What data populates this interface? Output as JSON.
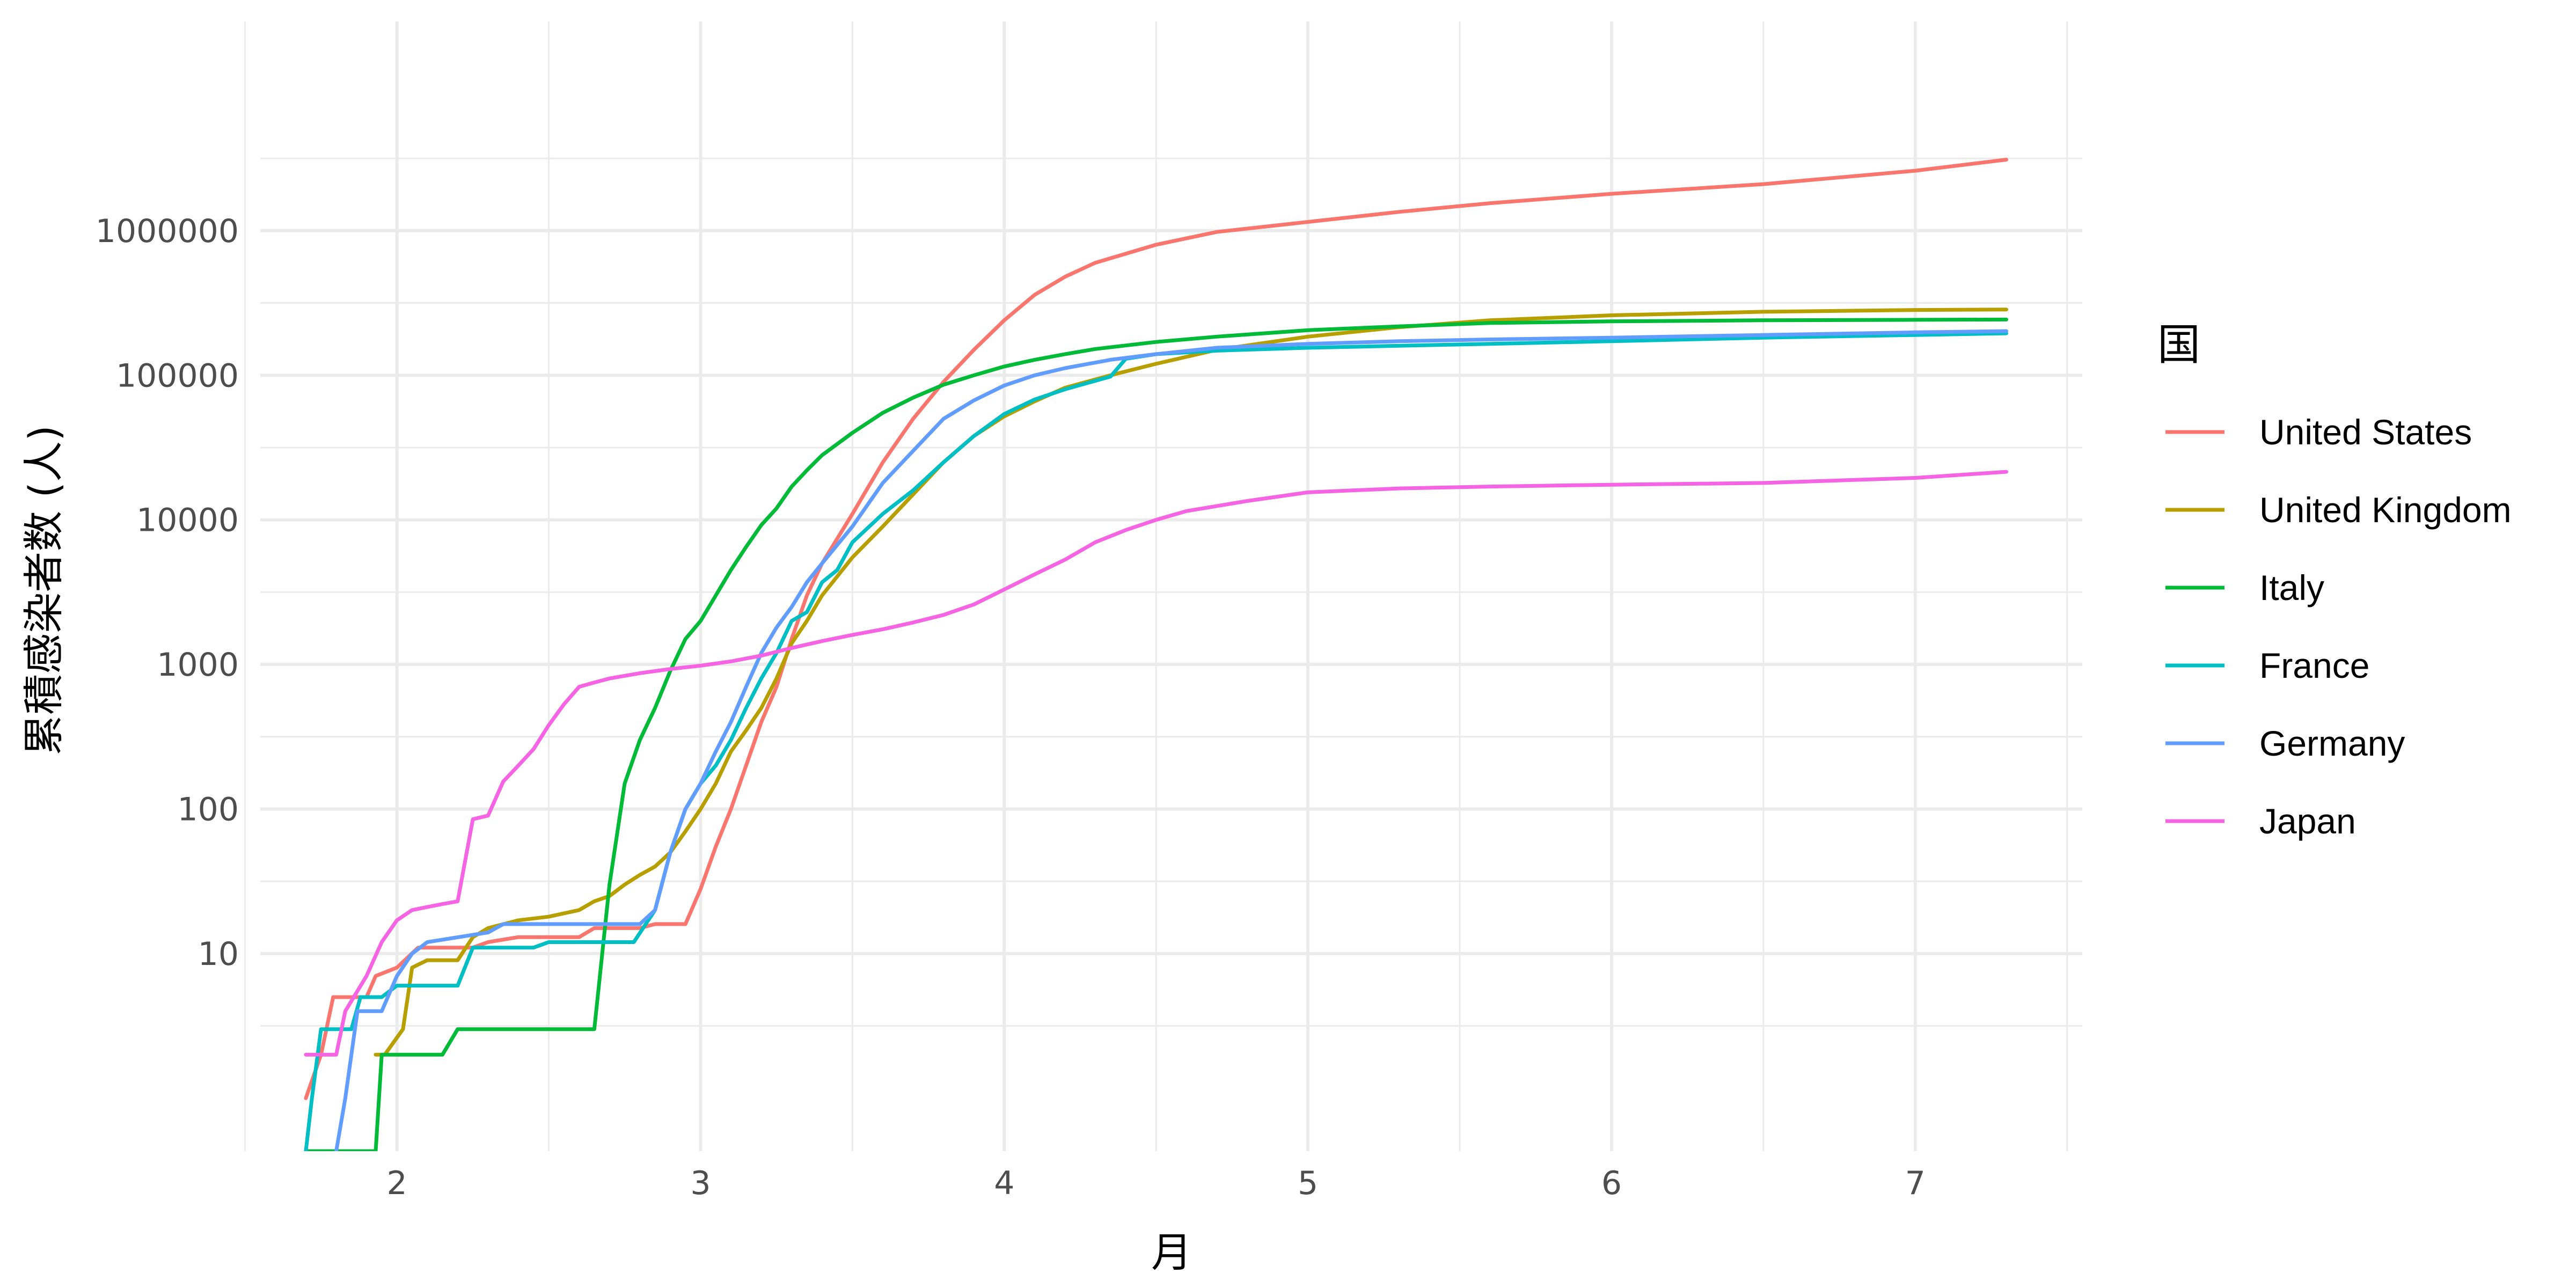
{
  "chart_data": {
    "type": "line",
    "xlabel": "月",
    "ylabel": "累積感染者数 (人)",
    "y_scale": "log10",
    "xlim": [
      1.55,
      7.55
    ],
    "ylim": [
      0.43,
      28000000
    ],
    "x_ticks": [
      2,
      3,
      4,
      5,
      6,
      7
    ],
    "y_ticks": [
      10,
      100,
      1000,
      10000,
      100000,
      1000000
    ],
    "y_tick_labels": [
      "10",
      "100",
      "1000",
      "10000",
      "100000",
      "1000000"
    ],
    "grid": true,
    "legend": {
      "title": "国",
      "position": "right"
    },
    "series": [
      {
        "name": "United States",
        "color": "#F8766D",
        "points": [
          [
            1.7,
            1
          ],
          [
            1.75,
            2
          ],
          [
            1.79,
            5
          ],
          [
            1.9,
            5
          ],
          [
            1.93,
            7
          ],
          [
            2.0,
            8
          ],
          [
            2.07,
            11
          ],
          [
            2.25,
            11
          ],
          [
            2.3,
            12
          ],
          [
            2.4,
            13
          ],
          [
            2.6,
            13
          ],
          [
            2.65,
            15
          ],
          [
            2.8,
            15
          ],
          [
            2.85,
            16
          ],
          [
            2.95,
            16
          ],
          [
            3.0,
            28
          ],
          [
            3.05,
            55
          ],
          [
            3.1,
            100
          ],
          [
            3.15,
            200
          ],
          [
            3.2,
            400
          ],
          [
            3.25,
            700
          ],
          [
            3.3,
            1500
          ],
          [
            3.35,
            3000
          ],
          [
            3.4,
            5000
          ],
          [
            3.5,
            11000
          ],
          [
            3.6,
            25000
          ],
          [
            3.7,
            50000
          ],
          [
            3.8,
            90000
          ],
          [
            3.9,
            150000
          ],
          [
            4.0,
            240000
          ],
          [
            4.1,
            360000
          ],
          [
            4.2,
            480000
          ],
          [
            4.3,
            600000
          ],
          [
            4.5,
            800000
          ],
          [
            4.7,
            980000
          ],
          [
            5.0,
            1150000
          ],
          [
            5.3,
            1350000
          ],
          [
            5.6,
            1550000
          ],
          [
            6.0,
            1800000
          ],
          [
            6.5,
            2100000
          ],
          [
            7.0,
            2600000
          ],
          [
            7.3,
            3100000
          ]
        ]
      },
      {
        "name": "United Kingdom",
        "color": "#B79F00",
        "points": [
          [
            1.93,
            2
          ],
          [
            1.96,
            2
          ],
          [
            2.02,
            3
          ],
          [
            2.05,
            8
          ],
          [
            2.1,
            9
          ],
          [
            2.2,
            9
          ],
          [
            2.25,
            13
          ],
          [
            2.3,
            15
          ],
          [
            2.4,
            17
          ],
          [
            2.5,
            18
          ],
          [
            2.6,
            20
          ],
          [
            2.65,
            23
          ],
          [
            2.7,
            25
          ],
          [
            2.75,
            30
          ],
          [
            2.8,
            35
          ],
          [
            2.85,
            40
          ],
          [
            2.9,
            50
          ],
          [
            2.95,
            70
          ],
          [
            3.0,
            100
          ],
          [
            3.05,
            150
          ],
          [
            3.1,
            250
          ],
          [
            3.15,
            350
          ],
          [
            3.2,
            500
          ],
          [
            3.25,
            800
          ],
          [
            3.3,
            1400
          ],
          [
            3.35,
            2000
          ],
          [
            3.4,
            3000
          ],
          [
            3.5,
            5500
          ],
          [
            3.6,
            9000
          ],
          [
            3.7,
            15000
          ],
          [
            3.8,
            25000
          ],
          [
            3.9,
            38000
          ],
          [
            4.0,
            52000
          ],
          [
            4.1,
            66000
          ],
          [
            4.2,
            82000
          ],
          [
            4.35,
            100000
          ],
          [
            4.5,
            120000
          ],
          [
            4.7,
            150000
          ],
          [
            5.0,
            185000
          ],
          [
            5.3,
            215000
          ],
          [
            5.6,
            240000
          ],
          [
            6.0,
            260000
          ],
          [
            6.5,
            275000
          ],
          [
            7.0,
            283000
          ],
          [
            7.3,
            285000
          ]
        ]
      },
      {
        "name": "Italy",
        "color": "#00BA38",
        "points": [
          [
            1.7,
            0.43
          ],
          [
            1.93,
            0.43
          ],
          [
            1.95,
            2
          ],
          [
            2.15,
            2
          ],
          [
            2.2,
            3
          ],
          [
            2.65,
            3
          ],
          [
            2.7,
            30
          ],
          [
            2.75,
            150
          ],
          [
            2.8,
            300
          ],
          [
            2.85,
            500
          ],
          [
            2.9,
            900
          ],
          [
            2.95,
            1500
          ],
          [
            3.0,
            2000
          ],
          [
            3.05,
            3000
          ],
          [
            3.1,
            4500
          ],
          [
            3.15,
            6500
          ],
          [
            3.2,
            9200
          ],
          [
            3.25,
            12000
          ],
          [
            3.3,
            17000
          ],
          [
            3.35,
            22000
          ],
          [
            3.4,
            28000
          ],
          [
            3.5,
            40000
          ],
          [
            3.6,
            55000
          ],
          [
            3.7,
            70000
          ],
          [
            3.8,
            86000
          ],
          [
            3.9,
            100000
          ],
          [
            4.0,
            115000
          ],
          [
            4.1,
            128000
          ],
          [
            4.2,
            140000
          ],
          [
            4.3,
            152000
          ],
          [
            4.5,
            170000
          ],
          [
            4.7,
            185000
          ],
          [
            5.0,
            205000
          ],
          [
            5.3,
            218000
          ],
          [
            5.6,
            230000
          ],
          [
            6.0,
            236000
          ],
          [
            6.5,
            240000
          ],
          [
            7.0,
            242000
          ],
          [
            7.3,
            243000
          ]
        ]
      },
      {
        "name": "France",
        "color": "#00BFC4",
        "points": [
          [
            1.7,
            0.43
          ],
          [
            1.72,
            1
          ],
          [
            1.75,
            3
          ],
          [
            1.85,
            3
          ],
          [
            1.88,
            5
          ],
          [
            1.95,
            5
          ],
          [
            2.0,
            6
          ],
          [
            2.2,
            6
          ],
          [
            2.25,
            11
          ],
          [
            2.45,
            11
          ],
          [
            2.5,
            12
          ],
          [
            2.7,
            12
          ],
          [
            2.78,
            12
          ],
          [
            2.85,
            20
          ],
          [
            2.9,
            50
          ],
          [
            2.95,
            100
          ],
          [
            3.0,
            150
          ],
          [
            3.05,
            200
          ],
          [
            3.1,
            300
          ],
          [
            3.15,
            500
          ],
          [
            3.2,
            800
          ],
          [
            3.25,
            1200
          ],
          [
            3.3,
            2000
          ],
          [
            3.35,
            2300
          ],
          [
            3.4,
            3700
          ],
          [
            3.45,
            4500
          ],
          [
            3.5,
            7000
          ],
          [
            3.6,
            11000
          ],
          [
            3.7,
            16000
          ],
          [
            3.8,
            25000
          ],
          [
            3.9,
            38000
          ],
          [
            4.0,
            54000
          ],
          [
            4.1,
            68000
          ],
          [
            4.2,
            80000
          ],
          [
            4.35,
            98000
          ],
          [
            4.4,
            130000
          ],
          [
            4.5,
            140000
          ],
          [
            4.7,
            148000
          ],
          [
            5.0,
            155000
          ],
          [
            5.3,
            160000
          ],
          [
            5.6,
            165000
          ],
          [
            6.0,
            172000
          ],
          [
            6.5,
            182000
          ],
          [
            7.0,
            190000
          ],
          [
            7.3,
            195000
          ]
        ]
      },
      {
        "name": "Germany",
        "color": "#619CFF",
        "points": [
          [
            1.8,
            0.43
          ],
          [
            1.83,
            1
          ],
          [
            1.87,
            4
          ],
          [
            1.95,
            4
          ],
          [
            2.0,
            7
          ],
          [
            2.05,
            10
          ],
          [
            2.1,
            12
          ],
          [
            2.3,
            14
          ],
          [
            2.35,
            16
          ],
          [
            2.8,
            16
          ],
          [
            2.85,
            20
          ],
          [
            2.9,
            50
          ],
          [
            2.95,
            100
          ],
          [
            3.0,
            150
          ],
          [
            3.05,
            250
          ],
          [
            3.1,
            400
          ],
          [
            3.15,
            700
          ],
          [
            3.2,
            1200
          ],
          [
            3.25,
            1800
          ],
          [
            3.3,
            2500
          ],
          [
            3.35,
            3700
          ],
          [
            3.4,
            5000
          ],
          [
            3.5,
            9000
          ],
          [
            3.6,
            18000
          ],
          [
            3.7,
            30000
          ],
          [
            3.8,
            50000
          ],
          [
            3.9,
            67000
          ],
          [
            4.0,
            85000
          ],
          [
            4.1,
            100000
          ],
          [
            4.2,
            112000
          ],
          [
            4.35,
            128000
          ],
          [
            4.5,
            140000
          ],
          [
            4.7,
            155000
          ],
          [
            5.0,
            165000
          ],
          [
            5.3,
            172000
          ],
          [
            5.6,
            177000
          ],
          [
            6.0,
            182000
          ],
          [
            6.5,
            190000
          ],
          [
            7.0,
            198000
          ],
          [
            7.3,
            202000
          ]
        ]
      },
      {
        "name": "Japan",
        "color": "#F564E3",
        "points": [
          [
            1.7,
            2
          ],
          [
            1.8,
            2
          ],
          [
            1.83,
            4
          ],
          [
            1.9,
            7
          ],
          [
            1.95,
            12
          ],
          [
            2.0,
            17
          ],
          [
            2.05,
            20
          ],
          [
            2.1,
            21
          ],
          [
            2.15,
            22
          ],
          [
            2.2,
            23
          ],
          [
            2.25,
            85
          ],
          [
            2.3,
            90
          ],
          [
            2.35,
            155
          ],
          [
            2.4,
            200
          ],
          [
            2.45,
            260
          ],
          [
            2.5,
            380
          ],
          [
            2.55,
            530
          ],
          [
            2.6,
            700
          ],
          [
            2.65,
            750
          ],
          [
            2.7,
            800
          ],
          [
            2.8,
            870
          ],
          [
            2.9,
            930
          ],
          [
            3.0,
            980
          ],
          [
            3.1,
            1050
          ],
          [
            3.2,
            1150
          ],
          [
            3.3,
            1300
          ],
          [
            3.4,
            1450
          ],
          [
            3.5,
            1600
          ],
          [
            3.6,
            1750
          ],
          [
            3.7,
            1950
          ],
          [
            3.8,
            2200
          ],
          [
            3.9,
            2600
          ],
          [
            4.0,
            3300
          ],
          [
            4.1,
            4200
          ],
          [
            4.2,
            5300
          ],
          [
            4.3,
            7000
          ],
          [
            4.4,
            8500
          ],
          [
            4.5,
            10000
          ],
          [
            4.6,
            11500
          ],
          [
            4.8,
            13500
          ],
          [
            5.0,
            15500
          ],
          [
            5.3,
            16500
          ],
          [
            5.6,
            17000
          ],
          [
            6.0,
            17500
          ],
          [
            6.5,
            18000
          ],
          [
            7.0,
            19500
          ],
          [
            7.3,
            21500
          ]
        ]
      }
    ]
  }
}
